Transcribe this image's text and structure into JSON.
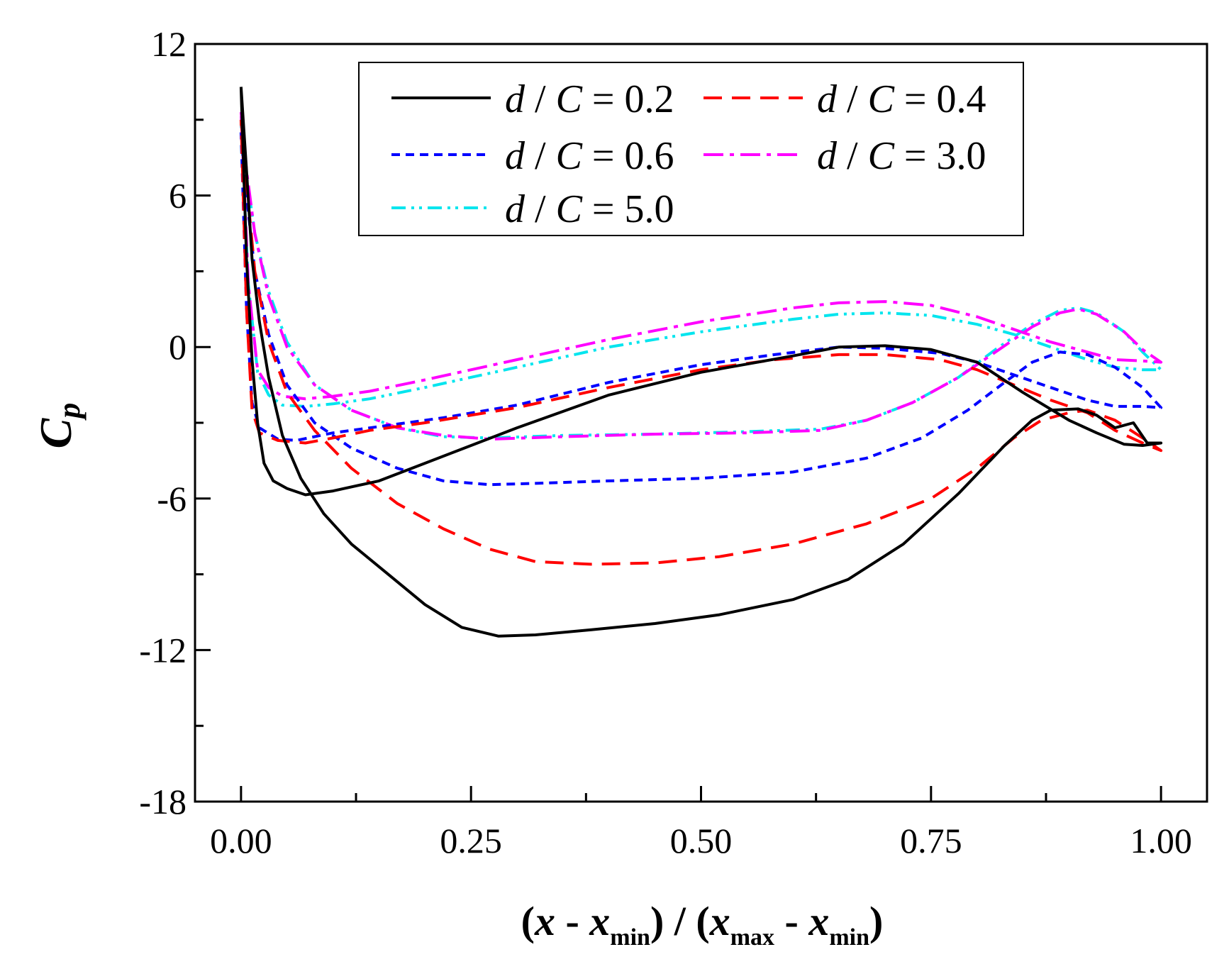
{
  "chart_data": {
    "type": "line",
    "title": "",
    "xlabel": {
      "open": "(",
      "x1": "x",
      "dash1": " - ",
      "x2": "x",
      "sub_min1": "min",
      "mid": ") / (",
      "x3": "x",
      "sub_max": "max",
      "dash2": " - ",
      "x4": "x",
      "sub_min2": "min",
      "close": ")"
    },
    "ylabel": {
      "main": "C",
      "sub": "p"
    },
    "xlim": [
      -0.05,
      1.05
    ],
    "ylim": [
      -18,
      12
    ],
    "xticks": [
      0.0,
      0.25,
      0.5,
      0.75,
      1.0
    ],
    "xtick_labels": [
      "0.00",
      "0.25",
      "0.50",
      "0.75",
      "1.00"
    ],
    "yticks": [
      12,
      6,
      0,
      -6,
      -12,
      -18
    ],
    "ytick_labels": [
      "12",
      "6",
      "0",
      "-6",
      "-12",
      "-18"
    ],
    "legend_position": "top-center",
    "series": [
      {
        "name": "d / C = 0.2",
        "legend": {
          "d": "d",
          "slash": " / ",
          "c": "C",
          "eq": " = ",
          "val": "0.2"
        },
        "color": "#000000",
        "dash": "",
        "points": [
          [
            0.0,
            10.3
          ],
          [
            0.006,
            7.0
          ],
          [
            0.012,
            3.5
          ],
          [
            0.02,
            1.0
          ],
          [
            0.03,
            -1.2
          ],
          [
            0.045,
            -3.5
          ],
          [
            0.065,
            -5.2
          ],
          [
            0.09,
            -6.6
          ],
          [
            0.12,
            -7.8
          ],
          [
            0.16,
            -9.0
          ],
          [
            0.2,
            -10.2
          ],
          [
            0.24,
            -11.1
          ],
          [
            0.28,
            -11.45
          ],
          [
            0.32,
            -11.4
          ],
          [
            0.38,
            -11.2
          ],
          [
            0.45,
            -10.95
          ],
          [
            0.52,
            -10.6
          ],
          [
            0.6,
            -10.0
          ],
          [
            0.66,
            -9.2
          ],
          [
            0.72,
            -7.8
          ],
          [
            0.78,
            -5.8
          ],
          [
            0.83,
            -3.9
          ],
          [
            0.86,
            -2.9
          ],
          [
            0.88,
            -2.5
          ],
          [
            0.91,
            -2.45
          ],
          [
            0.93,
            -2.7
          ],
          [
            0.95,
            -3.2
          ],
          [
            0.97,
            -3.0
          ],
          [
            0.985,
            -3.8
          ],
          [
            1.0,
            -3.8
          ],
          [
            0.98,
            -3.9
          ],
          [
            0.96,
            -3.85
          ],
          [
            0.93,
            -3.4
          ],
          [
            0.9,
            -2.9
          ],
          [
            0.85,
            -1.8
          ],
          [
            0.8,
            -0.6
          ],
          [
            0.75,
            -0.1
          ],
          [
            0.7,
            0.05
          ],
          [
            0.65,
            0.0
          ],
          [
            0.6,
            -0.35
          ],
          [
            0.5,
            -1.0
          ],
          [
            0.4,
            -1.9
          ],
          [
            0.3,
            -3.2
          ],
          [
            0.2,
            -4.6
          ],
          [
            0.15,
            -5.3
          ],
          [
            0.1,
            -5.7
          ],
          [
            0.07,
            -5.85
          ],
          [
            0.05,
            -5.6
          ],
          [
            0.035,
            -5.3
          ],
          [
            0.025,
            -4.6
          ],
          [
            0.018,
            -3.0
          ],
          [
            0.012,
            -0.5
          ],
          [
            0.006,
            3.5
          ],
          [
            0.0,
            10.3
          ]
        ]
      },
      {
        "name": "d / C = 0.4",
        "legend": {
          "d": "d",
          "slash": " / ",
          "c": "C",
          "eq": " = ",
          "val": "0.4"
        },
        "color": "#ff0000",
        "dash": "26 14",
        "points": [
          [
            0.0,
            9.0
          ],
          [
            0.006,
            6.5
          ],
          [
            0.015,
            3.0
          ],
          [
            0.03,
            0.2
          ],
          [
            0.05,
            -1.8
          ],
          [
            0.08,
            -3.3
          ],
          [
            0.12,
            -4.8
          ],
          [
            0.17,
            -6.2
          ],
          [
            0.22,
            -7.2
          ],
          [
            0.27,
            -8.0
          ],
          [
            0.32,
            -8.5
          ],
          [
            0.38,
            -8.6
          ],
          [
            0.45,
            -8.55
          ],
          [
            0.52,
            -8.3
          ],
          [
            0.6,
            -7.8
          ],
          [
            0.68,
            -7.0
          ],
          [
            0.75,
            -6.0
          ],
          [
            0.8,
            -4.8
          ],
          [
            0.84,
            -3.6
          ],
          [
            0.87,
            -2.9
          ],
          [
            0.9,
            -2.6
          ],
          [
            0.92,
            -2.5
          ],
          [
            0.95,
            -2.9
          ],
          [
            0.98,
            -3.6
          ],
          [
            1.0,
            -4.1
          ],
          [
            0.98,
            -3.8
          ],
          [
            0.95,
            -3.3
          ],
          [
            0.92,
            -2.6
          ],
          [
            0.88,
            -2.1
          ],
          [
            0.84,
            -1.5
          ],
          [
            0.8,
            -0.9
          ],
          [
            0.76,
            -0.5
          ],
          [
            0.7,
            -0.3
          ],
          [
            0.65,
            -0.3
          ],
          [
            0.58,
            -0.5
          ],
          [
            0.5,
            -0.9
          ],
          [
            0.4,
            -1.6
          ],
          [
            0.3,
            -2.4
          ],
          [
            0.2,
            -3.0
          ],
          [
            0.14,
            -3.3
          ],
          [
            0.1,
            -3.6
          ],
          [
            0.07,
            -3.8
          ],
          [
            0.04,
            -3.7
          ],
          [
            0.02,
            -3.4
          ],
          [
            0.012,
            -2.5
          ],
          [
            0.006,
            1.5
          ],
          [
            0.0,
            9.0
          ]
        ]
      },
      {
        "name": "d / C = 0.6",
        "legend": {
          "d": "d",
          "slash": " / ",
          "c": "C",
          "eq": " = ",
          "val": "0.6"
        },
        "color": "#0000ff",
        "dash": "12 8",
        "points": [
          [
            0.0,
            8.5
          ],
          [
            0.006,
            6.0
          ],
          [
            0.015,
            3.0
          ],
          [
            0.03,
            0.5
          ],
          [
            0.05,
            -1.5
          ],
          [
            0.08,
            -3.0
          ],
          [
            0.12,
            -4.0
          ],
          [
            0.17,
            -4.8
          ],
          [
            0.22,
            -5.3
          ],
          [
            0.27,
            -5.45
          ],
          [
            0.32,
            -5.4
          ],
          [
            0.4,
            -5.3
          ],
          [
            0.5,
            -5.2
          ],
          [
            0.6,
            -4.95
          ],
          [
            0.68,
            -4.4
          ],
          [
            0.74,
            -3.6
          ],
          [
            0.79,
            -2.5
          ],
          [
            0.83,
            -1.4
          ],
          [
            0.86,
            -0.6
          ],
          [
            0.89,
            -0.2
          ],
          [
            0.92,
            -0.3
          ],
          [
            0.95,
            -0.8
          ],
          [
            0.98,
            -1.6
          ],
          [
            1.0,
            -2.4
          ],
          [
            0.98,
            -2.35
          ],
          [
            0.95,
            -2.35
          ],
          [
            0.92,
            -2.1
          ],
          [
            0.88,
            -1.6
          ],
          [
            0.84,
            -1.1
          ],
          [
            0.8,
            -0.6
          ],
          [
            0.76,
            -0.25
          ],
          [
            0.7,
            -0.05
          ],
          [
            0.65,
            0.0
          ],
          [
            0.58,
            -0.3
          ],
          [
            0.5,
            -0.7
          ],
          [
            0.4,
            -1.4
          ],
          [
            0.3,
            -2.3
          ],
          [
            0.22,
            -2.8
          ],
          [
            0.16,
            -3.1
          ],
          [
            0.1,
            -3.4
          ],
          [
            0.06,
            -3.7
          ],
          [
            0.04,
            -3.65
          ],
          [
            0.02,
            -3.2
          ],
          [
            0.012,
            -2.2
          ],
          [
            0.006,
            1.5
          ],
          [
            0.0,
            8.5
          ]
        ]
      },
      {
        "name": "d / C = 3.0",
        "legend": {
          "d": "d",
          "slash": " / ",
          "c": "C",
          "eq": " = ",
          "val": "3.0"
        },
        "color": "#ff00ff",
        "dash": "28 9 6 9",
        "points": [
          [
            0.0,
            9.3
          ],
          [
            0.006,
            7.0
          ],
          [
            0.015,
            4.5
          ],
          [
            0.03,
            2.0
          ],
          [
            0.05,
            0.0
          ],
          [
            0.08,
            -1.5
          ],
          [
            0.12,
            -2.5
          ],
          [
            0.17,
            -3.2
          ],
          [
            0.22,
            -3.5
          ],
          [
            0.27,
            -3.65
          ],
          [
            0.35,
            -3.55
          ],
          [
            0.45,
            -3.45
          ],
          [
            0.55,
            -3.4
          ],
          [
            0.63,
            -3.3
          ],
          [
            0.68,
            -2.9
          ],
          [
            0.73,
            -2.2
          ],
          [
            0.78,
            -1.2
          ],
          [
            0.82,
            -0.2
          ],
          [
            0.86,
            0.8
          ],
          [
            0.89,
            1.35
          ],
          [
            0.91,
            1.5
          ],
          [
            0.93,
            1.3
          ],
          [
            0.96,
            0.6
          ],
          [
            0.98,
            -0.1
          ],
          [
            1.0,
            -0.6
          ],
          [
            0.98,
            -0.55
          ],
          [
            0.95,
            -0.5
          ],
          [
            0.92,
            -0.2
          ],
          [
            0.88,
            0.2
          ],
          [
            0.84,
            0.7
          ],
          [
            0.8,
            1.2
          ],
          [
            0.75,
            1.65
          ],
          [
            0.7,
            1.8
          ],
          [
            0.65,
            1.75
          ],
          [
            0.6,
            1.55
          ],
          [
            0.5,
            1.0
          ],
          [
            0.4,
            0.3
          ],
          [
            0.3,
            -0.5
          ],
          [
            0.2,
            -1.3
          ],
          [
            0.14,
            -1.75
          ],
          [
            0.1,
            -1.95
          ],
          [
            0.07,
            -2.05
          ],
          [
            0.045,
            -1.95
          ],
          [
            0.03,
            -1.6
          ],
          [
            0.018,
            -0.9
          ],
          [
            0.008,
            2.5
          ],
          [
            0.0,
            9.3
          ]
        ]
      },
      {
        "name": "d / C = 5.0",
        "legend": {
          "d": "d",
          "slash": " / ",
          "c": "C",
          "eq": " = ",
          "val": "5.0"
        },
        "color": "#00e5ee",
        "dash": "20 8 4 7 4 8",
        "points": [
          [
            0.0,
            8.9
          ],
          [
            0.006,
            6.8
          ],
          [
            0.015,
            4.5
          ],
          [
            0.03,
            2.2
          ],
          [
            0.05,
            0.2
          ],
          [
            0.08,
            -1.5
          ],
          [
            0.12,
            -2.5
          ],
          [
            0.17,
            -3.2
          ],
          [
            0.22,
            -3.55
          ],
          [
            0.27,
            -3.6
          ],
          [
            0.35,
            -3.5
          ],
          [
            0.45,
            -3.45
          ],
          [
            0.55,
            -3.35
          ],
          [
            0.63,
            -3.25
          ],
          [
            0.68,
            -2.9
          ],
          [
            0.73,
            -2.2
          ],
          [
            0.78,
            -1.2
          ],
          [
            0.82,
            -0.1
          ],
          [
            0.86,
            0.9
          ],
          [
            0.89,
            1.45
          ],
          [
            0.91,
            1.55
          ],
          [
            0.93,
            1.35
          ],
          [
            0.96,
            0.6
          ],
          [
            0.98,
            -0.2
          ],
          [
            1.0,
            -0.9
          ],
          [
            0.98,
            -0.9
          ],
          [
            0.95,
            -0.8
          ],
          [
            0.92,
            -0.5
          ],
          [
            0.88,
            0.0
          ],
          [
            0.84,
            0.5
          ],
          [
            0.8,
            0.9
          ],
          [
            0.75,
            1.25
          ],
          [
            0.7,
            1.35
          ],
          [
            0.65,
            1.3
          ],
          [
            0.6,
            1.1
          ],
          [
            0.5,
            0.6
          ],
          [
            0.4,
            0.0
          ],
          [
            0.3,
            -0.8
          ],
          [
            0.2,
            -1.6
          ],
          [
            0.14,
            -2.05
          ],
          [
            0.1,
            -2.25
          ],
          [
            0.07,
            -2.35
          ],
          [
            0.045,
            -2.3
          ],
          [
            0.03,
            -1.9
          ],
          [
            0.018,
            -1.0
          ],
          [
            0.008,
            2.5
          ],
          [
            0.0,
            8.9
          ]
        ]
      }
    ]
  }
}
